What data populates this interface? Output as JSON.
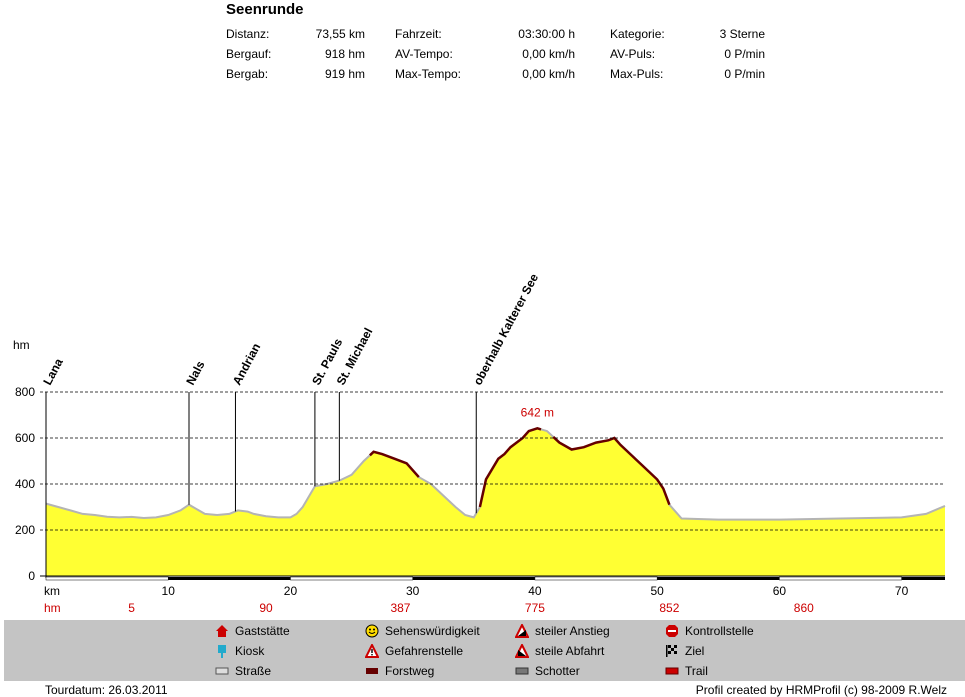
{
  "header": {
    "title": "Seenrunde",
    "stats": [
      {
        "label": "Distanz:",
        "value": "73,55 km"
      },
      {
        "label": "Bergauf:",
        "value": "918 hm"
      },
      {
        "label": "Bergab:",
        "value": "919 hm"
      },
      {
        "label": "Fahrzeit:",
        "value": "03:30:00 h"
      },
      {
        "label": "AV-Tempo:",
        "value": "0,00 km/h"
      },
      {
        "label": "Max-Tempo:",
        "value": "0,00 km/h"
      },
      {
        "label": "Kategorie:",
        "value": "3 Sterne"
      },
      {
        "label": "AV-Puls:",
        "value": "0 P/min"
      },
      {
        "label": "Max-Puls:",
        "value": "0 P/min"
      }
    ]
  },
  "chart_data": {
    "type": "area",
    "ylabel": "hm",
    "xlabel": "km",
    "xlim": [
      0,
      73.55
    ],
    "ylim": [
      0,
      800
    ],
    "yticks": [
      0,
      200,
      400,
      600,
      800
    ],
    "xticks": [
      10,
      20,
      30,
      40,
      50,
      60,
      70
    ],
    "grid": true,
    "max_label": "642 m",
    "max_point": {
      "x": 40.2,
      "y": 642
    },
    "profile": {
      "x": [
        0,
        1,
        2,
        3,
        4,
        5,
        6,
        7,
        8,
        9,
        10,
        11,
        11.7,
        12.5,
        13,
        14,
        15,
        15.7,
        16.5,
        17,
        18,
        19,
        20,
        20.5,
        21,
        22,
        23,
        24,
        25,
        26,
        26.8,
        27.5,
        28.5,
        29.5,
        30.5,
        31.5,
        32.5,
        33.5,
        34.3,
        35,
        35.5,
        36,
        37,
        37.5,
        38,
        39,
        39.5,
        40.2,
        41,
        42,
        43,
        44,
        45,
        46,
        46.5,
        47,
        48,
        49,
        50,
        50.5,
        51,
        52,
        55,
        60,
        65,
        70,
        72,
        73.55
      ],
      "y": [
        315,
        300,
        285,
        270,
        265,
        258,
        255,
        257,
        252,
        255,
        265,
        285,
        310,
        285,
        270,
        265,
        270,
        285,
        280,
        270,
        260,
        255,
        255,
        270,
        300,
        390,
        400,
        415,
        440,
        500,
        540,
        530,
        510,
        490,
        430,
        400,
        350,
        300,
        265,
        255,
        300,
        420,
        510,
        530,
        560,
        600,
        630,
        642,
        630,
        580,
        550,
        560,
        580,
        590,
        600,
        570,
        520,
        470,
        420,
        380,
        310,
        250,
        245,
        245,
        250,
        255,
        270,
        305
      ]
    },
    "roughness_track": [
      {
        "from": 0,
        "to": 10,
        "surface": "Straße"
      },
      {
        "from": 10,
        "to": 20,
        "surface": "Forstweg"
      },
      {
        "from": 20,
        "to": 30,
        "surface": "Straße"
      },
      {
        "from": 30,
        "to": 40,
        "surface": "Forstweg"
      },
      {
        "from": 40,
        "to": 50,
        "surface": "Straße"
      },
      {
        "from": 50,
        "to": 60,
        "surface": "Forstweg"
      },
      {
        "from": 60,
        "to": 70,
        "surface": "Straße"
      },
      {
        "from": 70,
        "to": 73.55,
        "surface": "Forstweg"
      }
    ],
    "trail_segments": [
      {
        "from": 26.5,
        "to": 30.5
      },
      {
        "from": 35.5,
        "to": 40.5
      },
      {
        "from": 41.5,
        "to": 51
      }
    ],
    "waypoints": [
      {
        "name": "Lana",
        "x": 0
      },
      {
        "name": "Nals",
        "x": 11.7
      },
      {
        "name": "Andrian",
        "x": 15.5
      },
      {
        "name": "St. Pauls",
        "x": 22
      },
      {
        "name": "St. Michael",
        "x": 24
      },
      {
        "name": "oberhalb Kalterer See",
        "x": 35.2
      }
    ],
    "hm_row": {
      "label": "hm",
      "entries": [
        {
          "x": 7,
          "value": "5"
        },
        {
          "x": 18,
          "value": "90"
        },
        {
          "x": 29,
          "value": "387"
        },
        {
          "x": 40,
          "value": "775"
        },
        {
          "x": 51,
          "value": "852"
        },
        {
          "x": 62,
          "value": "860"
        }
      ]
    },
    "colors": {
      "fill": "#ffff33",
      "road": "#b4b4b4",
      "trail": "#660000",
      "text_red": "#cc0000",
      "track_black": "#000000"
    }
  },
  "legend": {
    "items": [
      {
        "label": "Gaststätte",
        "icon": "house-icon"
      },
      {
        "label": "Kiosk",
        "icon": "kiosk-icon"
      },
      {
        "label": "Straße",
        "icon": "road-swatch-icon"
      },
      {
        "label": "Sehenswürdigkeit",
        "icon": "smiley-icon"
      },
      {
        "label": "Gefahrenstelle",
        "icon": "warning-icon"
      },
      {
        "label": "Forstweg",
        "icon": "forest-road-swatch-icon"
      },
      {
        "label": "steiler Anstieg",
        "icon": "steep-climb-icon"
      },
      {
        "label": "steile Abfahrt",
        "icon": "steep-descent-icon"
      },
      {
        "label": "Schotter",
        "icon": "gravel-swatch-icon"
      },
      {
        "label": "Kontrollstelle",
        "icon": "stop-icon"
      },
      {
        "label": "Ziel",
        "icon": "finish-flag-icon"
      },
      {
        "label": "Trail",
        "icon": "trail-swatch-icon"
      }
    ]
  },
  "footer": {
    "date": "Tourdatum: 26.03.2011",
    "credit": "Profil created by HRMProfil (c) 98-2009 R.Welz"
  }
}
